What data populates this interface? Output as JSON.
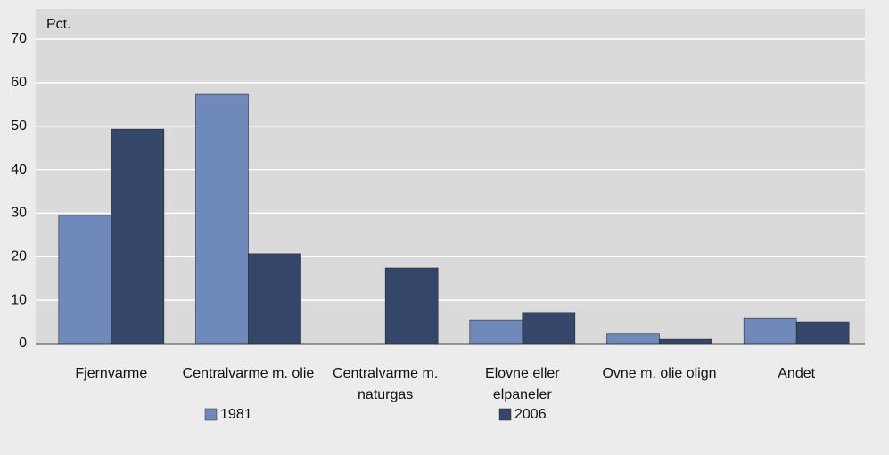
{
  "chart_data": {
    "type": "bar",
    "y_label": "Pct.",
    "categories": [
      "Fjernvarme",
      "Centralvarme m. olie",
      "Centralvarme m. naturgas",
      "Elovne eller elpaneler",
      "Ovne m. olie olign",
      "Andet"
    ],
    "series": [
      {
        "name": "1981",
        "color": "#6f8aba",
        "values": [
          29.5,
          57.3,
          0,
          5.5,
          2.3,
          5.9
        ]
      },
      {
        "name": "2006",
        "color": "#344669",
        "values": [
          49.3,
          20.7,
          17.4,
          7.2,
          1.0,
          4.9
        ]
      }
    ],
    "ylim": [
      0,
      70
    ],
    "yticks": [
      0,
      10,
      20,
      30,
      40,
      50,
      60,
      70
    ],
    "grid": true,
    "legend": "bottom"
  }
}
